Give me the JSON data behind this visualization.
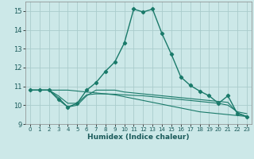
{
  "xlabel": "Humidex (Indice chaleur)",
  "bg_color": "#cce8e8",
  "grid_color": "#aacccc",
  "line_color": "#1a7a6a",
  "xlim": [
    -0.5,
    23.5
  ],
  "ylim": [
    9,
    15.5
  ],
  "yticks": [
    9,
    10,
    11,
    12,
    13,
    14,
    15
  ],
  "xticks": [
    0,
    1,
    2,
    3,
    4,
    5,
    6,
    7,
    8,
    9,
    10,
    11,
    12,
    13,
    14,
    15,
    16,
    17,
    18,
    19,
    20,
    21,
    22,
    23
  ],
  "series": [
    {
      "x": [
        0,
        1,
        2,
        3,
        4,
        5,
        6,
        7,
        8,
        9,
        10,
        11,
        12,
        13,
        14,
        15,
        16,
        17,
        18,
        19,
        20,
        21,
        22,
        23
      ],
      "y": [
        10.8,
        10.8,
        10.8,
        10.8,
        10.8,
        10.75,
        10.7,
        10.65,
        10.6,
        10.55,
        10.45,
        10.35,
        10.25,
        10.15,
        10.05,
        9.95,
        9.85,
        9.75,
        9.65,
        9.6,
        9.55,
        9.5,
        9.45,
        9.4
      ],
      "markers": false
    },
    {
      "x": [
        0,
        1,
        2,
        3,
        4,
        5,
        6,
        7,
        8,
        9,
        10,
        11,
        12,
        13,
        14,
        15,
        16,
        17,
        18,
        19,
        20,
        21,
        22,
        23
      ],
      "y": [
        10.8,
        10.8,
        10.8,
        10.5,
        10.1,
        10.1,
        10.55,
        10.6,
        10.6,
        10.58,
        10.55,
        10.52,
        10.5,
        10.45,
        10.4,
        10.35,
        10.3,
        10.25,
        10.2,
        10.15,
        10.1,
        10.0,
        9.65,
        9.55
      ],
      "markers": false
    },
    {
      "x": [
        0,
        1,
        2,
        3,
        4,
        5,
        6,
        7,
        8,
        9,
        10,
        11,
        12,
        13,
        14,
        15,
        16,
        17,
        18,
        19,
        20,
        21,
        22,
        23
      ],
      "y": [
        10.8,
        10.8,
        10.8,
        10.4,
        9.9,
        10.0,
        10.5,
        10.8,
        10.8,
        10.8,
        10.7,
        10.65,
        10.6,
        10.55,
        10.5,
        10.45,
        10.4,
        10.35,
        10.3,
        10.25,
        10.2,
        10.15,
        9.6,
        9.4
      ],
      "markers": false
    },
    {
      "x": [
        0,
        1,
        2,
        3,
        4,
        5,
        6,
        7,
        8,
        9,
        10,
        11,
        12,
        13,
        14,
        15,
        16,
        17,
        18,
        19,
        20,
        21,
        22,
        23
      ],
      "y": [
        10.8,
        10.8,
        10.8,
        10.3,
        9.9,
        10.1,
        10.8,
        11.2,
        11.8,
        12.3,
        13.3,
        15.1,
        14.95,
        15.1,
        13.8,
        12.7,
        11.5,
        11.05,
        10.75,
        10.5,
        10.1,
        10.5,
        9.55,
        9.4
      ],
      "markers": true
    }
  ]
}
